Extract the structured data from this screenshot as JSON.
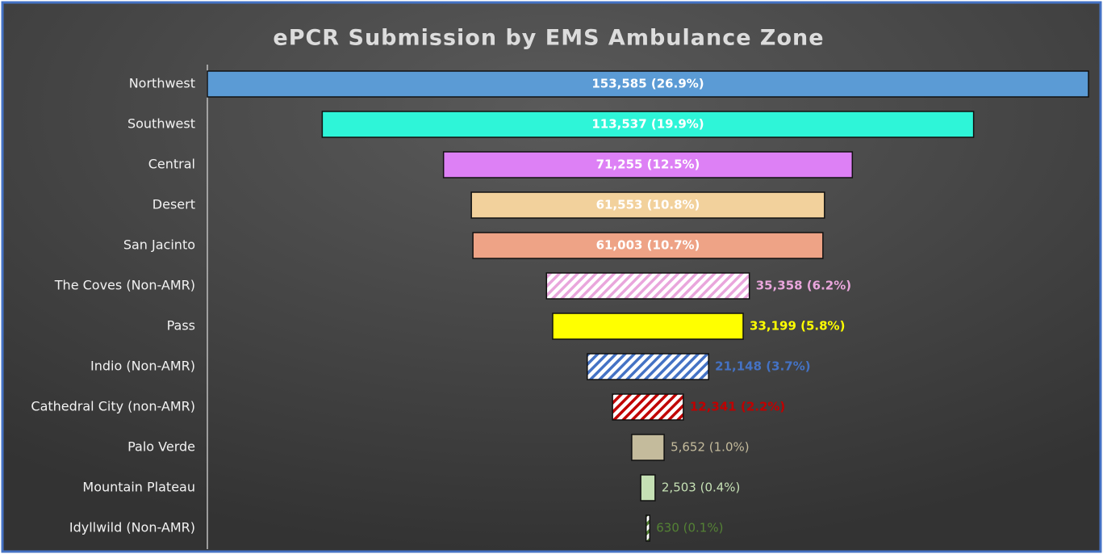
{
  "chart_data": {
    "type": "funnel",
    "title": "ePCR Submission by EMS Ambulance Zone",
    "categories": [
      "Northwest",
      "Southwest",
      "Central",
      "Desert",
      "San Jacinto",
      "The Coves (Non-AMR)",
      "Pass",
      "Indio (Non-AMR)",
      "Cathedral City (non-AMR)",
      "Palo Verde",
      "Mountain Plateau",
      "Idyllwild (Non-AMR)"
    ],
    "values": [
      153585,
      113537,
      71255,
      61553,
      61003,
      35358,
      33199,
      21148,
      12341,
      5652,
      2503,
      630
    ],
    "value_labels": [
      "153,585 (26.9%)",
      "113,537 (19.9%)",
      "71,255 (12.5%)",
      "61,553 (10.8%)",
      "61,003 (10.7%)",
      "35,358 (6.2%)",
      "33,199 (5.8%)",
      "21,148 (3.7%)",
      "12,341 (2.2%)",
      "5,652 (1.0%)",
      "2,503 (0.4%)",
      "630 (0.1%)"
    ],
    "colors": [
      "#5b9bd5",
      "#2ef5d8",
      "#dd80f5",
      "#f2d19c",
      "#eea386",
      "#e9a6dc",
      "#ffff00",
      "#4472c4",
      "#c00000",
      "#c4bb9c",
      "#c5e0b4",
      "#548235"
    ],
    "hatched": [
      false,
      false,
      false,
      false,
      false,
      true,
      false,
      true,
      true,
      false,
      false,
      true
    ]
  }
}
